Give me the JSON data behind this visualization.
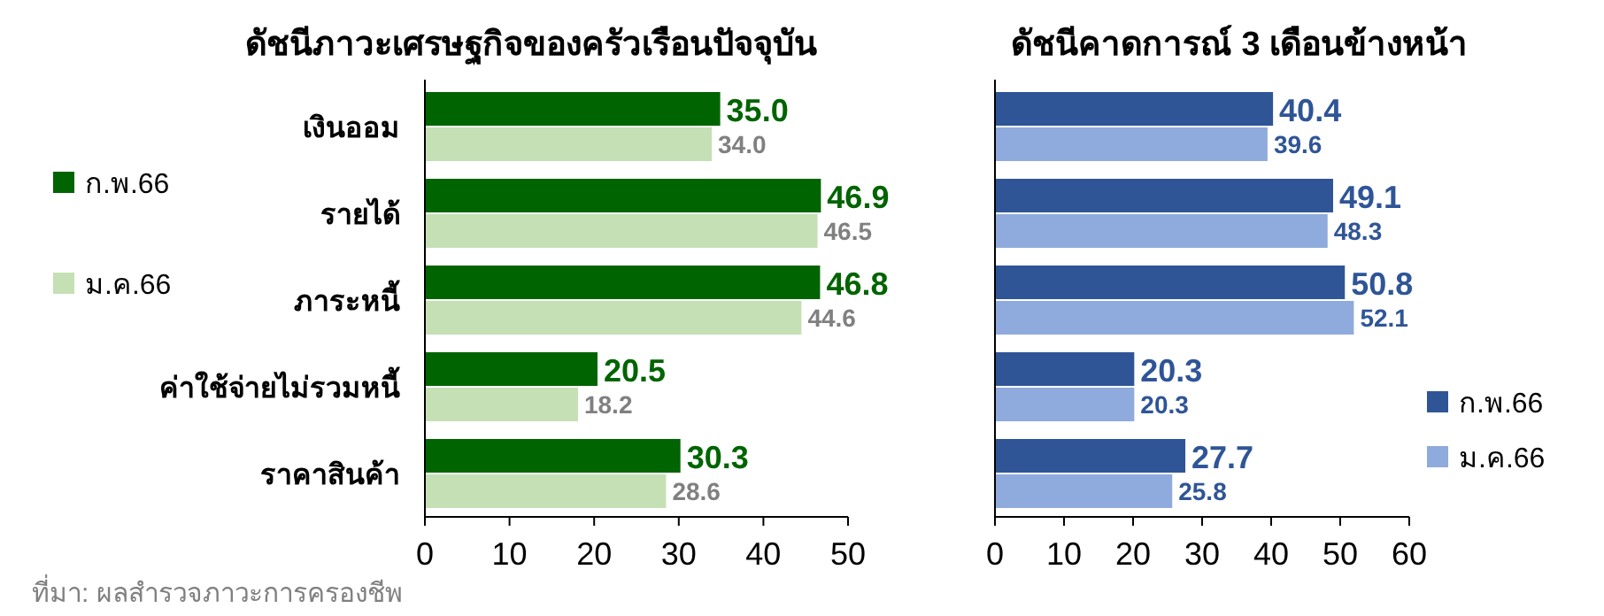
{
  "chart_data": [
    {
      "type": "bar",
      "orientation": "horizontal",
      "title": "ดัชนีภาวะเศรษฐกิจของครัวเรือนปัจจุบัน",
      "categories": [
        "เงินออม",
        "รายได้",
        "ภาระหนี้",
        "ค่าใช้จ่ายไม่รวมหนี้",
        "ราคาสินค้า"
      ],
      "series": [
        {
          "name": "ก.พ.66",
          "color": "#006400",
          "values": [
            35.0,
            46.9,
            46.8,
            20.5,
            30.3
          ],
          "value_labels": [
            "35.0",
            "46.9",
            "46.8",
            "20.5",
            "30.3"
          ]
        },
        {
          "name": "ม.ค.66",
          "color": "#c5e0b4",
          "values": [
            34.0,
            46.5,
            44.6,
            18.2,
            28.6
          ],
          "value_labels": [
            "34.0",
            "46.5",
            "44.6",
            "18.2",
            "28.6"
          ]
        }
      ],
      "xlim": [
        0,
        50
      ],
      "xticks": [
        0,
        10,
        20,
        30,
        40,
        50
      ],
      "legend": "left",
      "grid": false,
      "annotations": [
        "ที่มา: ผลสำรวจภาวะการครองชีพ"
      ]
    },
    {
      "type": "bar",
      "orientation": "horizontal",
      "title": "ดัชนีคาดการณ์ 3 เดือนข้างหน้า",
      "categories": [
        null,
        null,
        null,
        null,
        null
      ],
      "series": [
        {
          "name": "ก.พ.66",
          "color": "#2f5597",
          "values": [
            40.4,
            49.1,
            50.8,
            20.3,
            27.7
          ],
          "value_labels": [
            "40.4",
            "49.1",
            "50.8",
            "20.3",
            "27.7"
          ]
        },
        {
          "name": "ม.ค.66",
          "color": "#8faadc",
          "values": [
            39.6,
            48.3,
            52.1,
            20.3,
            25.8
          ],
          "value_labels": [
            "39.6",
            "48.3",
            "52.1",
            "20.3",
            "25.8"
          ]
        }
      ],
      "xlim": [
        0,
        60
      ],
      "xticks": [
        0,
        10,
        20,
        30,
        40,
        50,
        60
      ],
      "legend": "right",
      "grid": false
    }
  ]
}
